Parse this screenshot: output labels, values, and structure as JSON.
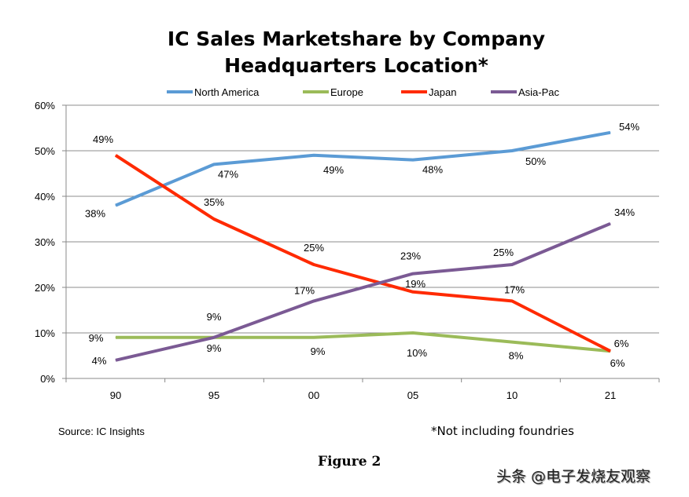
{
  "chart_data": {
    "type": "line",
    "title": [
      "IC Sales Marketshare by Company",
      "Headquarters Location*"
    ],
    "categories": [
      "90",
      "95",
      "00",
      "05",
      "10",
      "21"
    ],
    "ylim": [
      0,
      60
    ],
    "yticks": [
      "0%",
      "10%",
      "20%",
      "30%",
      "40%",
      "50%",
      "60%"
    ],
    "grid": true,
    "legend_position": "top",
    "series": [
      {
        "name": "North America",
        "color": "#5b9bd5",
        "values": [
          38,
          47,
          49,
          48,
          50,
          54
        ],
        "labels": [
          "38%",
          "47%",
          "49%",
          "48%",
          "50%",
          "54%"
        ]
      },
      {
        "name": "Europe",
        "color": "#9bbb59",
        "values": [
          9,
          9,
          9,
          10,
          8,
          6
        ],
        "labels": [
          "9%",
          "9%",
          "9%",
          "10%",
          "8%",
          "6%"
        ]
      },
      {
        "name": "Japan",
        "color": "#ff2a00",
        "values": [
          49,
          35,
          25,
          19,
          17,
          6
        ],
        "labels": [
          "49%",
          "35%",
          "25%",
          "19%",
          "17%",
          "6%"
        ]
      },
      {
        "name": "Asia-Pac",
        "color": "#7b5a94",
        "values": [
          4,
          9,
          17,
          23,
          25,
          34
        ],
        "labels": [
          "4%",
          "9%",
          "17%",
          "23%",
          "25%",
          "34%"
        ]
      }
    ]
  },
  "source": "Source:  IC Insights",
  "footnote": "*Not including foundries",
  "figure_caption": "Figure 2",
  "watermark": "头条 @电子发烧友观察"
}
